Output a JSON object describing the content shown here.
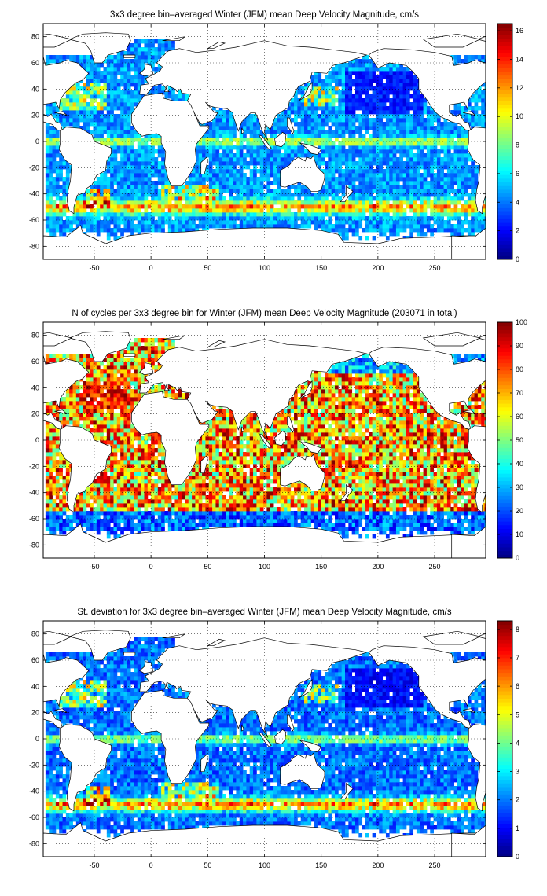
{
  "chart_data": [
    {
      "type": "heatmap",
      "title": "3x3 degree bin–averaged Winter (JFM) mean Deep Velocity Magnitude, cm/s",
      "xlim": [
        -95,
        295
      ],
      "ylim": [
        -90,
        90
      ],
      "x_ticks": [
        -50,
        0,
        50,
        100,
        150,
        200,
        250
      ],
      "y_ticks": [
        -80,
        -60,
        -40,
        -20,
        0,
        20,
        40,
        60,
        80
      ],
      "grid": true,
      "colorbar": {
        "range": [
          0,
          16.5
        ],
        "ticks": [
          0,
          2,
          4,
          6,
          8,
          10,
          12,
          14,
          16
        ]
      },
      "bin_size_deg": 3,
      "field": "mean_velocity"
    },
    {
      "type": "heatmap",
      "title": "N of cycles per 3x3 degree bin for Winter (JFM) mean Deep Velocity Magnitude (203071 in total)",
      "xlim": [
        -95,
        295
      ],
      "ylim": [
        -90,
        90
      ],
      "x_ticks": [
        -50,
        0,
        50,
        100,
        150,
        200,
        250
      ],
      "y_ticks": [
        -80,
        -60,
        -40,
        -20,
        0,
        20,
        40,
        60,
        80
      ],
      "grid": true,
      "colorbar": {
        "range": [
          0,
          100
        ],
        "ticks": [
          0,
          10,
          20,
          30,
          40,
          50,
          60,
          70,
          80,
          90,
          100
        ]
      },
      "bin_size_deg": 3,
      "field": "cycle_count"
    },
    {
      "type": "heatmap",
      "title": "St. deviation for 3x3 degree bin–averaged Winter (JFM) mean Deep Velocity Magnitude, cm/s",
      "xlim": [
        -95,
        295
      ],
      "ylim": [
        -90,
        90
      ],
      "x_ticks": [
        -50,
        0,
        50,
        100,
        150,
        200,
        250
      ],
      "y_ticks": [
        -80,
        -60,
        -40,
        -20,
        0,
        20,
        40,
        60,
        80
      ],
      "grid": true,
      "colorbar": {
        "range": [
          0,
          8.3
        ],
        "ticks": [
          0,
          1,
          2,
          3,
          4,
          5,
          6,
          7,
          8
        ]
      },
      "bin_size_deg": 3,
      "field": "std_velocity"
    }
  ]
}
